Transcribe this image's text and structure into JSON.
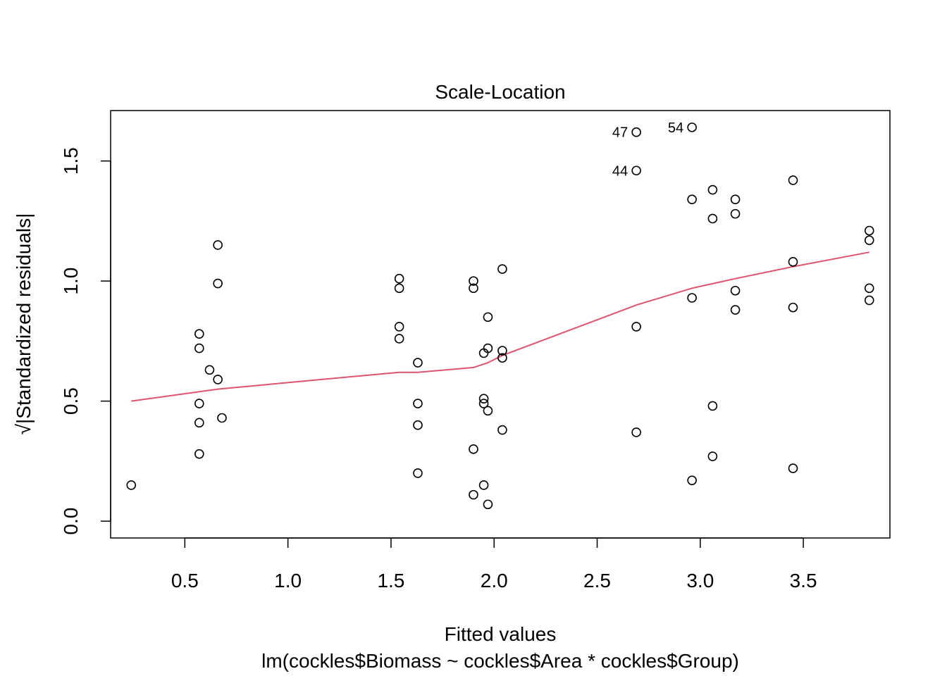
{
  "chart_data": {
    "type": "scatter",
    "title": "Scale-Location",
    "xlabel": "Fitted values",
    "subtitle": "lm(cockles$Biomass ~ cockles$Area * cockles$Group)",
    "ylabel_prefix": "√",
    "ylabel": "|Standardized residuals|",
    "xlim": [
      0.14,
      3.92
    ],
    "ylim": [
      -0.07,
      1.71
    ],
    "xticks": [
      0.5,
      1.0,
      1.5,
      2.0,
      2.5,
      3.0,
      3.5
    ],
    "xtick_labels": [
      "0.5",
      "1.0",
      "1.5",
      "2.0",
      "2.5",
      "3.0",
      "3.5"
    ],
    "yticks": [
      0.0,
      0.5,
      1.0,
      1.5
    ],
    "ytick_labels": [
      "0.0",
      "0.5",
      "1.0",
      "1.5"
    ],
    "grid": false,
    "points": [
      {
        "x": 0.24,
        "y": 0.15
      },
      {
        "x": 0.57,
        "y": 0.78
      },
      {
        "x": 0.57,
        "y": 0.72
      },
      {
        "x": 0.57,
        "y": 0.49
      },
      {
        "x": 0.57,
        "y": 0.41
      },
      {
        "x": 0.57,
        "y": 0.28
      },
      {
        "x": 0.62,
        "y": 0.63
      },
      {
        "x": 0.66,
        "y": 1.15
      },
      {
        "x": 0.66,
        "y": 0.99
      },
      {
        "x": 0.66,
        "y": 0.59
      },
      {
        "x": 0.68,
        "y": 0.43
      },
      {
        "x": 1.54,
        "y": 1.01
      },
      {
        "x": 1.54,
        "y": 0.97
      },
      {
        "x": 1.54,
        "y": 0.81
      },
      {
        "x": 1.54,
        "y": 0.76
      },
      {
        "x": 1.63,
        "y": 0.66
      },
      {
        "x": 1.63,
        "y": 0.49
      },
      {
        "x": 1.63,
        "y": 0.4
      },
      {
        "x": 1.63,
        "y": 0.2
      },
      {
        "x": 1.9,
        "y": 1.0
      },
      {
        "x": 1.9,
        "y": 0.97
      },
      {
        "x": 1.9,
        "y": 0.3
      },
      {
        "x": 1.9,
        "y": 0.11
      },
      {
        "x": 1.95,
        "y": 0.7
      },
      {
        "x": 1.95,
        "y": 0.51
      },
      {
        "x": 1.95,
        "y": 0.49
      },
      {
        "x": 1.95,
        "y": 0.15
      },
      {
        "x": 1.97,
        "y": 0.85
      },
      {
        "x": 1.97,
        "y": 0.72
      },
      {
        "x": 1.97,
        "y": 0.46
      },
      {
        "x": 1.97,
        "y": 0.07
      },
      {
        "x": 2.04,
        "y": 1.05
      },
      {
        "x": 2.04,
        "y": 0.71
      },
      {
        "x": 2.04,
        "y": 0.68
      },
      {
        "x": 2.04,
        "y": 0.38
      },
      {
        "x": 2.69,
        "y": 1.62,
        "label": "47"
      },
      {
        "x": 2.69,
        "y": 1.46,
        "label": "44"
      },
      {
        "x": 2.69,
        "y": 0.81
      },
      {
        "x": 2.69,
        "y": 0.37
      },
      {
        "x": 2.96,
        "y": 1.64,
        "label": "54"
      },
      {
        "x": 2.96,
        "y": 1.34
      },
      {
        "x": 2.96,
        "y": 0.93
      },
      {
        "x": 2.96,
        "y": 0.17
      },
      {
        "x": 3.06,
        "y": 1.38
      },
      {
        "x": 3.06,
        "y": 1.26
      },
      {
        "x": 3.06,
        "y": 0.48
      },
      {
        "x": 3.06,
        "y": 0.27
      },
      {
        "x": 3.17,
        "y": 1.34
      },
      {
        "x": 3.17,
        "y": 1.28
      },
      {
        "x": 3.17,
        "y": 0.96
      },
      {
        "x": 3.17,
        "y": 0.88
      },
      {
        "x": 3.45,
        "y": 1.42
      },
      {
        "x": 3.45,
        "y": 1.08
      },
      {
        "x": 3.45,
        "y": 0.89
      },
      {
        "x": 3.45,
        "y": 0.22
      },
      {
        "x": 3.82,
        "y": 1.21
      },
      {
        "x": 3.82,
        "y": 1.17
      },
      {
        "x": 3.82,
        "y": 0.97
      },
      {
        "x": 3.82,
        "y": 0.92
      }
    ],
    "smoother": {
      "x": [
        0.24,
        0.66,
        1.54,
        1.63,
        1.9,
        1.97,
        2.04,
        2.69,
        2.96,
        3.17,
        3.45,
        3.82
      ],
      "y": [
        0.5,
        0.55,
        0.62,
        0.62,
        0.64,
        0.66,
        0.69,
        0.9,
        0.97,
        1.01,
        1.06,
        1.12
      ],
      "color": "#df536b"
    },
    "point_color": "#000000"
  }
}
